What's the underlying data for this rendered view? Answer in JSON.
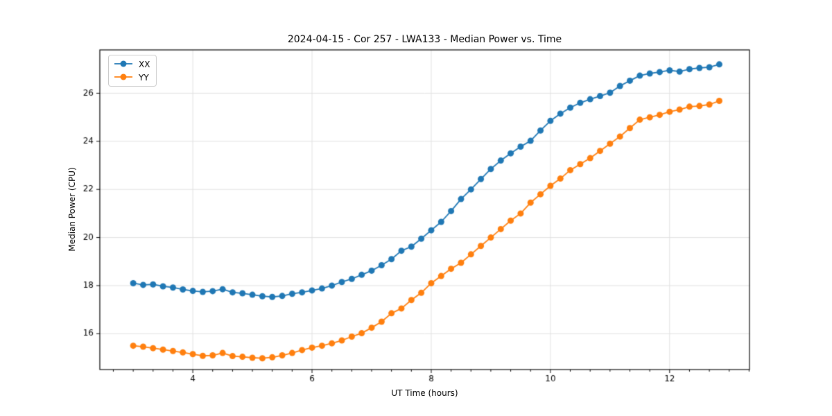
{
  "figure": {
    "background": "#ffffff"
  },
  "chart_data": {
    "type": "line",
    "title": "2024-04-15 - Cor 257 - LWA133 - Median Power vs. Time",
    "xlabel": "UT Time (hours)",
    "ylabel": "Median Power (CPU)",
    "xlim": [
      2.44,
      13.34
    ],
    "ylim": [
      14.51,
      27.8
    ],
    "x_major_ticks": [
      4,
      6,
      8,
      10,
      12
    ],
    "x_tick_labels": [
      "4",
      "6",
      "8",
      "10",
      "12"
    ],
    "x_minor_tick_step": 0.33333,
    "y_major_ticks": [
      16,
      18,
      20,
      22,
      24,
      26
    ],
    "y_tick_labels": [
      "16",
      "18",
      "20",
      "22",
      "24",
      "26"
    ],
    "grid": true,
    "grid_color": "#e0e0e0",
    "axis_color": "#000000",
    "legend_position": "upper-left",
    "marker": "circle",
    "marker_size": 4.5,
    "line_width": 1.8,
    "x": [
      3,
      3.167,
      3.333,
      3.5,
      3.667,
      3.833,
      4,
      4.167,
      4.333,
      4.5,
      4.667,
      4.833,
      5,
      5.167,
      5.333,
      5.5,
      5.667,
      5.833,
      6,
      6.167,
      6.333,
      6.5,
      6.667,
      6.833,
      7,
      7.167,
      7.333,
      7.5,
      7.667,
      7.833,
      8,
      8.167,
      8.333,
      8.5,
      8.667,
      8.833,
      9,
      9.167,
      9.333,
      9.5,
      9.667,
      9.833,
      10,
      10.167,
      10.333,
      10.5,
      10.667,
      10.833,
      11,
      11.167,
      11.333,
      11.5,
      11.667,
      11.833,
      12,
      12.167,
      12.333,
      12.5,
      12.667,
      12.833
    ],
    "series": [
      {
        "name": "XX",
        "color": "#1f77b4",
        "values": [
          18.1,
          18.03,
          18.05,
          17.97,
          17.92,
          17.84,
          17.78,
          17.74,
          17.77,
          17.85,
          17.72,
          17.68,
          17.62,
          17.56,
          17.53,
          17.57,
          17.66,
          17.72,
          17.8,
          17.88,
          18.0,
          18.15,
          18.28,
          18.45,
          18.62,
          18.85,
          19.1,
          19.45,
          19.62,
          19.95,
          20.3,
          20.65,
          21.1,
          21.6,
          22.0,
          22.43,
          22.85,
          23.2,
          23.5,
          23.78,
          24.02,
          24.45,
          24.85,
          25.15,
          25.4,
          25.6,
          25.75,
          25.88,
          26.02,
          26.3,
          26.52,
          26.73,
          26.82,
          26.88,
          26.95,
          26.9,
          27.0,
          27.05,
          27.08,
          27.2
        ]
      },
      {
        "name": "YY",
        "color": "#ff7f0e",
        "values": [
          15.5,
          15.46,
          15.4,
          15.34,
          15.28,
          15.22,
          15.15,
          15.08,
          15.1,
          15.2,
          15.07,
          15.04,
          15.0,
          14.98,
          15.02,
          15.1,
          15.2,
          15.32,
          15.42,
          15.5,
          15.6,
          15.72,
          15.88,
          16.02,
          16.25,
          16.5,
          16.85,
          17.05,
          17.4,
          17.7,
          18.1,
          18.4,
          18.7,
          18.95,
          19.3,
          19.65,
          20.0,
          20.35,
          20.7,
          21.0,
          21.45,
          21.8,
          22.15,
          22.45,
          22.8,
          23.05,
          23.3,
          23.6,
          23.9,
          24.2,
          24.55,
          24.9,
          25.0,
          25.1,
          25.23,
          25.32,
          25.44,
          25.47,
          25.53,
          25.68
        ]
      }
    ]
  }
}
